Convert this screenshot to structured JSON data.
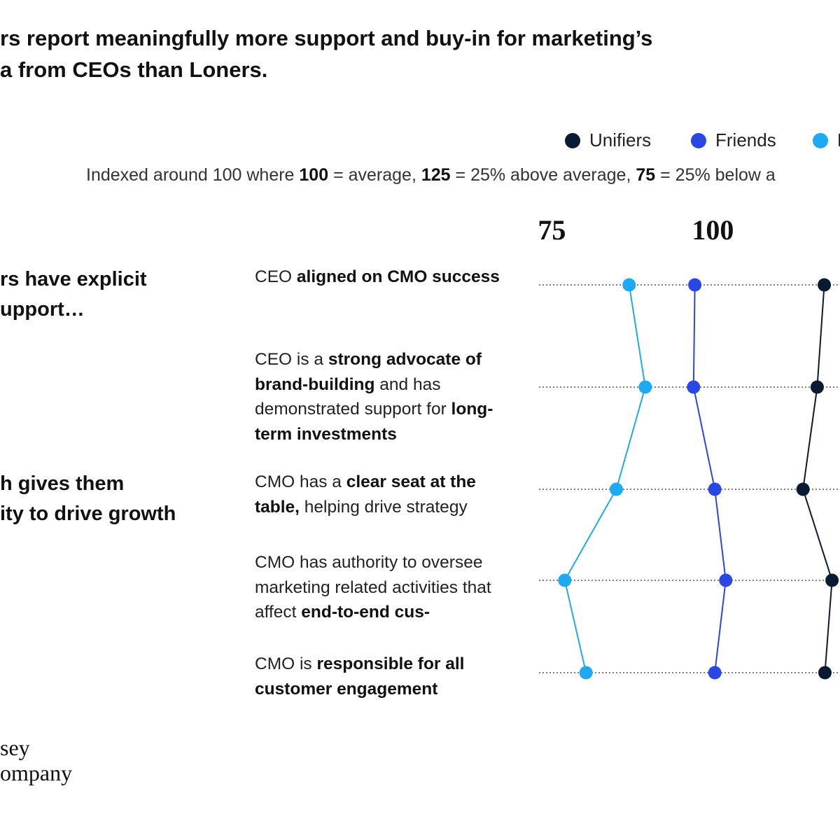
{
  "chart_data": {
    "type": "dot",
    "title_lines": [
      "rs report meaningfully more support and buy-in for marketing’s",
      "a from CEOs than Loners."
    ],
    "subtitle_parts": [
      "Indexed around 100 where ",
      "100",
      " = average, ",
      "125",
      " = 25% above average, ",
      "75",
      " = 25% below a"
    ],
    "group_labels": [
      {
        "lines": [
          "rs have explicit",
          "upport…"
        ]
      },
      {
        "lines": [
          "h gives them",
          "ity to drive growth"
        ]
      }
    ],
    "categories": [
      [
        "CEO ",
        "aligned on CMO success"
      ],
      [
        "CEO is a ",
        "strong advocate of brand-building",
        " and has demonstrated support for ",
        "long-term investments"
      ],
      [
        "CMO has a ",
        "clear seat at the table,",
        " helping drive strategy"
      ],
      [
        "CMO has authority to oversee marketing related activities that affect ",
        "end-to-end cus-"
      ],
      [
        "CMO is ",
        "responsible for all customer engagement"
      ]
    ],
    "series": [
      {
        "name": "Unifiers",
        "color": "#0b1a33",
        "values": [
          117.3,
          116.2,
          114,
          118.5,
          117.4
        ]
      },
      {
        "name": "Friends",
        "color": "#2a46e3",
        "values": [
          97.2,
          97,
          100.3,
          102,
          100.3
        ]
      },
      {
        "name": "Loners",
        "color": "#1fa9f0",
        "values": [
          87,
          89.5,
          85,
          77,
          80.3
        ]
      }
    ],
    "xlim": [
      73,
      120
    ],
    "xticks": [
      75,
      100
    ],
    "logo_lines": [
      "sey",
      "ompany"
    ]
  }
}
